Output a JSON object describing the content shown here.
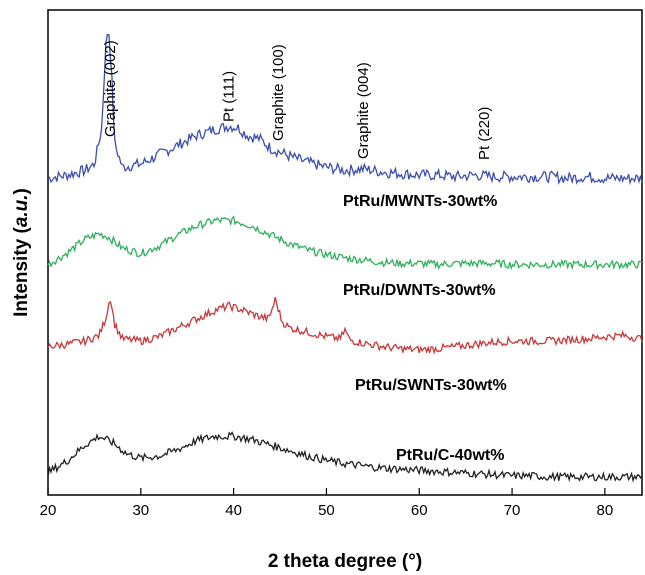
{
  "chart_data": {
    "type": "line",
    "xlabel": "2 theta degree (°)",
    "ylabel": "Intensity (a.u.)",
    "xlim": [
      20,
      84
    ],
    "xticks": [
      20,
      30,
      40,
      50,
      60,
      70,
      80
    ],
    "y_tick_labels": false,
    "grid": false,
    "annotations": [
      {
        "text": "Graphite (002)",
        "x": 27.2
      },
      {
        "text": "Pt (111)",
        "x": 40.0
      },
      {
        "text": "Graphite (100)",
        "x": 45.3
      },
      {
        "text": "Graphite (004)",
        "x": 54.5
      },
      {
        "text": "Pt (220)",
        "x": 67.5
      }
    ],
    "series": [
      {
        "name": "PtRu/MWNTs-30wt%",
        "color": "#3b4fb0",
        "offset": 3,
        "x": [
          20,
          22,
          24,
          25,
          25.8,
          26.2,
          26.5,
          26.8,
          27.2,
          28,
          30,
          32,
          34,
          36,
          38,
          39.5,
          40.5,
          41.5,
          42.8,
          44,
          46,
          48,
          50,
          52,
          54,
          56,
          58,
          60,
          62,
          64,
          66,
          68,
          70,
          72,
          74,
          76,
          78,
          80,
          82,
          84
        ],
        "y": [
          0.03,
          0.05,
          0.08,
          0.12,
          0.35,
          0.85,
          1.0,
          0.75,
          0.25,
          0.1,
          0.12,
          0.18,
          0.24,
          0.3,
          0.34,
          0.36,
          0.35,
          0.3,
          0.28,
          0.22,
          0.17,
          0.13,
          0.1,
          0.08,
          0.09,
          0.07,
          0.06,
          0.05,
          0.05,
          0.04,
          0.05,
          0.04,
          0.04,
          0.04,
          0.04,
          0.03,
          0.04,
          0.03,
          0.03,
          0.03
        ]
      },
      {
        "name": "PtRu/DWNTs-30wt%",
        "color": "#2fb05a",
        "offset": 2,
        "x": [
          20,
          22,
          24,
          25.5,
          26.5,
          28,
          30,
          32,
          34,
          36,
          38,
          40,
          42,
          44,
          46,
          48,
          50,
          52,
          54,
          56,
          58,
          60,
          62,
          64,
          66,
          68,
          70,
          72,
          74,
          76,
          78,
          80,
          82,
          84
        ],
        "y": [
          0.05,
          0.15,
          0.28,
          0.33,
          0.3,
          0.2,
          0.15,
          0.22,
          0.32,
          0.4,
          0.45,
          0.45,
          0.4,
          0.32,
          0.24,
          0.18,
          0.14,
          0.11,
          0.09,
          0.07,
          0.06,
          0.06,
          0.05,
          0.06,
          0.06,
          0.06,
          0.05,
          0.05,
          0.05,
          0.05,
          0.05,
          0.05,
          0.05,
          0.05
        ]
      },
      {
        "name": "PtRu/SWNTs-30wt%",
        "color": "#c83838",
        "offset": 1,
        "x": [
          20,
          22,
          24,
          25.5,
          26.2,
          26.7,
          27.2,
          28,
          30,
          32,
          34,
          36,
          38,
          39.5,
          41,
          42.5,
          43.8,
          44.5,
          45.2,
          46,
          48,
          50,
          51.5,
          52,
          52.5,
          54,
          56,
          58,
          60,
          62,
          64,
          66,
          68,
          70,
          72,
          74,
          76,
          78,
          80,
          82,
          84
        ],
        "y": [
          0.05,
          0.07,
          0.1,
          0.15,
          0.3,
          0.5,
          0.25,
          0.12,
          0.1,
          0.14,
          0.22,
          0.3,
          0.38,
          0.42,
          0.38,
          0.33,
          0.3,
          0.48,
          0.28,
          0.22,
          0.18,
          0.14,
          0.12,
          0.2,
          0.11,
          0.08,
          0.05,
          0.03,
          0.02,
          0.03,
          0.05,
          0.07,
          0.09,
          0.1,
          0.1,
          0.1,
          0.11,
          0.12,
          0.14,
          0.15,
          0.12
        ]
      },
      {
        "name": "PtRu/C-40wt%",
        "color": "#222222",
        "offset": 0,
        "x": [
          20,
          22,
          24,
          25.5,
          27,
          28.5,
          30,
          32,
          34,
          36,
          38,
          40,
          42,
          44,
          46,
          48,
          50,
          52,
          54,
          56,
          58,
          60,
          62,
          64,
          66,
          68,
          70,
          72,
          74,
          76,
          78,
          80,
          82,
          84
        ],
        "y": [
          0.05,
          0.15,
          0.3,
          0.38,
          0.32,
          0.22,
          0.18,
          0.2,
          0.26,
          0.34,
          0.38,
          0.38,
          0.35,
          0.3,
          0.25,
          0.2,
          0.16,
          0.13,
          0.11,
          0.09,
          0.08,
          0.07,
          0.06,
          0.05,
          0.04,
          0.03,
          0.02,
          0.02,
          0.01,
          0.01,
          0.01,
          0.01,
          0.01,
          0.01
        ]
      }
    ]
  }
}
